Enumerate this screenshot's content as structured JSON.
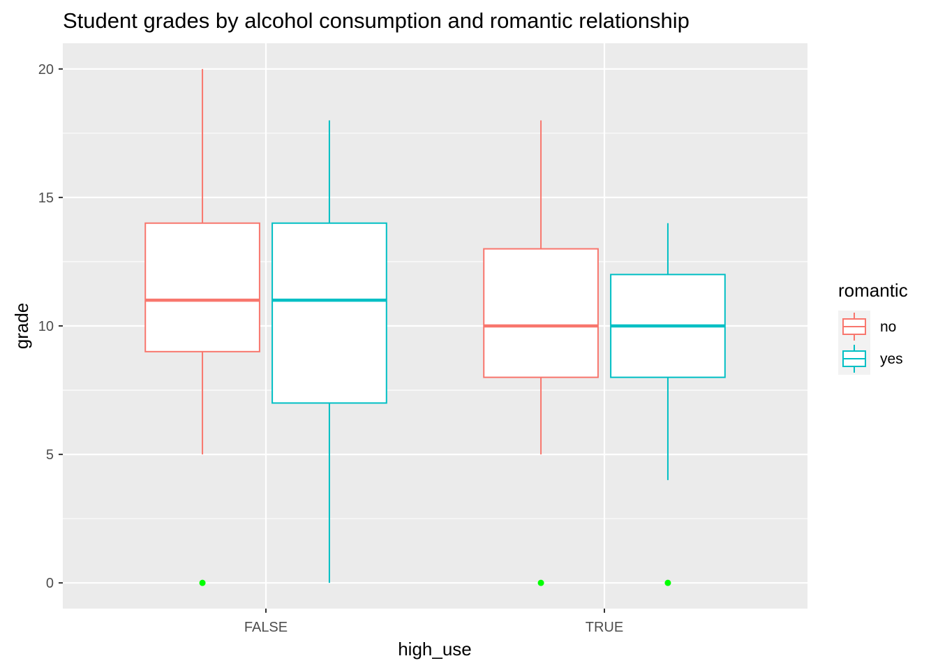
{
  "chart_data": {
    "type": "boxplot",
    "title": "Student grades by alcohol consumption and romantic relationship",
    "xlabel": "high_use",
    "ylabel": "grade",
    "categories": [
      "FALSE",
      "TRUE"
    ],
    "ylim": [
      -1,
      21
    ],
    "yticks": [
      0,
      5,
      10,
      15,
      20
    ],
    "grid": true,
    "legend": {
      "title": "romantic",
      "position": "right"
    },
    "series": [
      {
        "name": "no",
        "color": "#F8766D",
        "boxes": [
          {
            "category": "FALSE",
            "min": 5,
            "q1": 9,
            "median": 11,
            "q3": 14,
            "max": 20,
            "outliers": [
              0
            ]
          },
          {
            "category": "TRUE",
            "min": 5,
            "q1": 8,
            "median": 10,
            "q3": 13,
            "max": 18,
            "outliers": [
              0
            ]
          }
        ]
      },
      {
        "name": "yes",
        "color": "#00BFC4",
        "boxes": [
          {
            "category": "FALSE",
            "min": 0,
            "q1": 7,
            "median": 11,
            "q3": 14,
            "max": 18,
            "outliers": []
          },
          {
            "category": "TRUE",
            "min": 4,
            "q1": 8,
            "median": 10,
            "q3": 12,
            "max": 14,
            "outliers": [
              0
            ]
          }
        ]
      }
    ],
    "outlier_color": "#00FF00"
  }
}
